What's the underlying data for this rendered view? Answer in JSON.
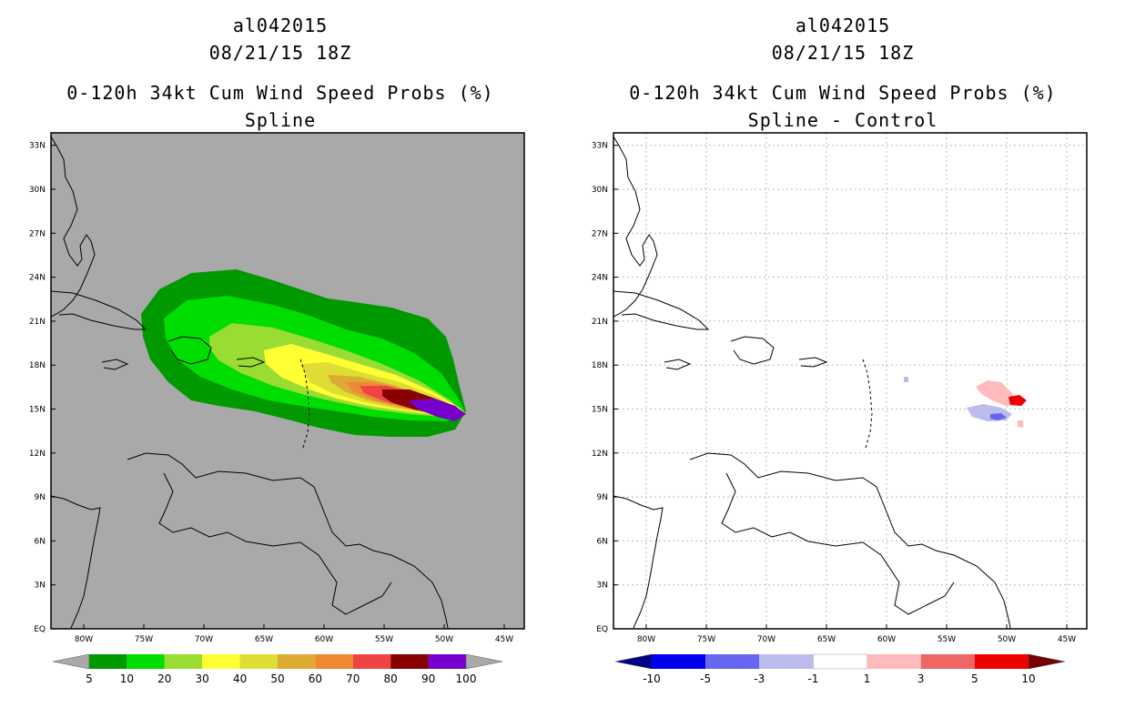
{
  "left": {
    "title_id": "al042015",
    "title_time": "08/21/15 18Z",
    "title_product": "0-120h 34kt Cum Wind Speed Probs (%)",
    "title_sub": "Spline",
    "background": "#a9a9a9",
    "colorbar": {
      "labels": [
        "5",
        "10",
        "20",
        "30",
        "40",
        "50",
        "60",
        "70",
        "80",
        "90",
        "100"
      ],
      "colors": [
        "#009900",
        "#00dd00",
        "#99dd33",
        "#ffff33",
        "#dddd33",
        "#ddaa33",
        "#ee8833",
        "#ee4444",
        "#880000",
        "#7700cc"
      ],
      "under_color": "#a9a9a9",
      "over_color": "#a9a9a9"
    }
  },
  "right": {
    "title_id": "al042015",
    "title_time": "08/21/15 18Z",
    "title_product": "0-120h 34kt Cum Wind Speed Probs (%)",
    "title_sub": "Spline - Control",
    "background": "#ffffff",
    "colorbar": {
      "labels": [
        "-10",
        "-5",
        "-3",
        "-1",
        "1",
        "3",
        "5",
        "10"
      ],
      "colors": [
        "#0000ee",
        "#6666ee",
        "#bbbbee",
        "#ffffff",
        "#ffbbbb",
        "#ee6666",
        "#ee0000"
      ],
      "under_color": "#000088",
      "over_color": "#770000"
    }
  },
  "axes": {
    "lat_labels": [
      "EQ",
      "3N",
      "6N",
      "9N",
      "12N",
      "15N",
      "18N",
      "21N",
      "24N",
      "27N",
      "30N",
      "33N"
    ],
    "lon_labels": [
      "80W",
      "75W",
      "70W",
      "65W",
      "60W",
      "55W",
      "50W",
      "45W"
    ]
  }
}
